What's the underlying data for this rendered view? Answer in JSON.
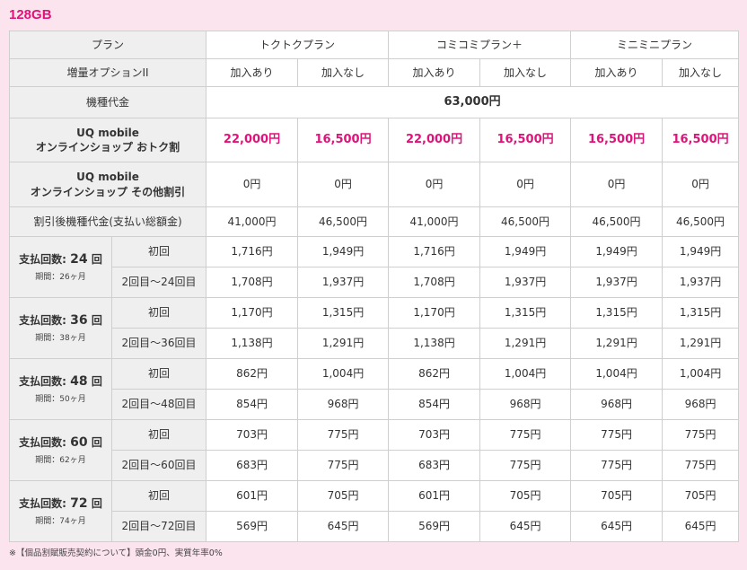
{
  "title": "128GB",
  "header": {
    "plan_label": "プラン",
    "plans": [
      "トクトクプラン",
      "コミコミプラン＋",
      "ミニミニプラン"
    ],
    "option_label": "増量オプションII",
    "options": [
      "加入あり",
      "加入なし",
      "加入あり",
      "加入なし",
      "加入あり",
      "加入なし"
    ]
  },
  "device_price": {
    "label": "機種代金",
    "value": "63,000円"
  },
  "otoku": {
    "label1": "UQ mobile",
    "label2": "オンラインショップ おトク割",
    "values": [
      "22,000円",
      "16,500円",
      "22,000円",
      "16,500円",
      "16,500円",
      "16,500円"
    ]
  },
  "other_discount": {
    "label1": "UQ mobile",
    "label2": "オンラインショップ その他割引",
    "values": [
      "0円",
      "0円",
      "0円",
      "0円",
      "0円",
      "0円"
    ]
  },
  "after_discount": {
    "label": "割引後機種代金(支払い総額金)",
    "values": [
      "41,000円",
      "46,500円",
      "41,000円",
      "46,500円",
      "46,500円",
      "46,500円"
    ]
  },
  "installments": [
    {
      "prefix": "支払回数: ",
      "count": "24",
      "suffix": " 回",
      "period": "期間：26ヶ月",
      "first_label": "初回",
      "first": [
        "1,716円",
        "1,949円",
        "1,716円",
        "1,949円",
        "1,949円",
        "1,949円"
      ],
      "rest_label": "2回目〜24回目",
      "rest": [
        "1,708円",
        "1,937円",
        "1,708円",
        "1,937円",
        "1,937円",
        "1,937円"
      ]
    },
    {
      "prefix": "支払回数: ",
      "count": "36",
      "suffix": " 回",
      "period": "期間：38ヶ月",
      "first_label": "初回",
      "first": [
        "1,170円",
        "1,315円",
        "1,170円",
        "1,315円",
        "1,315円",
        "1,315円"
      ],
      "rest_label": "2回目〜36回目",
      "rest": [
        "1,138円",
        "1,291円",
        "1,138円",
        "1,291円",
        "1,291円",
        "1,291円"
      ]
    },
    {
      "prefix": "支払回数: ",
      "count": "48",
      "suffix": " 回",
      "period": "期間：50ヶ月",
      "first_label": "初回",
      "first": [
        "862円",
        "1,004円",
        "862円",
        "1,004円",
        "1,004円",
        "1,004円"
      ],
      "rest_label": "2回目〜48回目",
      "rest": [
        "854円",
        "968円",
        "854円",
        "968円",
        "968円",
        "968円"
      ]
    },
    {
      "prefix": "支払回数: ",
      "count": "60",
      "suffix": " 回",
      "period": "期間：62ヶ月",
      "first_label": "初回",
      "first": [
        "703円",
        "775円",
        "703円",
        "775円",
        "775円",
        "775円"
      ],
      "rest_label": "2回目〜60回目",
      "rest": [
        "683円",
        "775円",
        "683円",
        "775円",
        "775円",
        "775円"
      ]
    },
    {
      "prefix": "支払回数: ",
      "count": "72",
      "suffix": " 回",
      "period": "期間：74ヶ月",
      "first_label": "初回",
      "first": [
        "601円",
        "705円",
        "601円",
        "705円",
        "705円",
        "705円"
      ],
      "rest_label": "2回目〜72回目",
      "rest": [
        "569円",
        "645円",
        "569円",
        "645円",
        "645円",
        "645円"
      ]
    }
  ],
  "note": "※【個品割賦販売契約について】頭金0円、実質年率0%"
}
